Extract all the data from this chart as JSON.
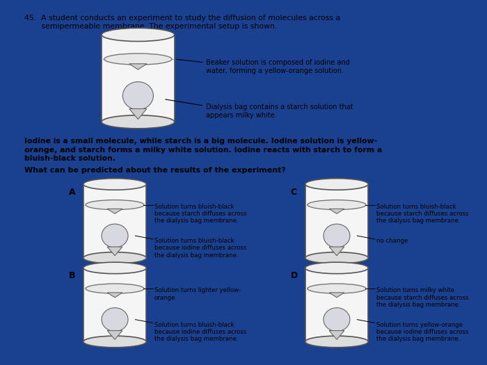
{
  "background_color": "#1a4090",
  "content_bg": "#ffffff",
  "title_line1": "45.  A student conducts an experiment to study the diffusion of molecules across a",
  "title_line2": "       semipermeable membrane. The experimental setup is shown.",
  "description_line1": "Iodine is a small molecule, while starch is a big molecule. Iodine solution is yellow-",
  "description_line2": "orange, and starch forms a milky white solution. Iodine reacts with starch to form a",
  "description_line3": "bluish-black solution.",
  "question": "What can be predicted about the results of the experiment?",
  "beaker_label1": "Beaker solution is composed of iodine and\nwater, forming a yellow-orange solution.",
  "beaker_label2": "Dialysis bag contains a starch solution that\nappears milky white.",
  "option_A_top": "Solution turns bluish-black\nbecause starch diffuses across\nthe dialysis bag membrane.",
  "option_A_bot": "Solution turns bluish-black\nbecause iodine diffuses across\nthe dialysis bag membrane.",
  "option_B_top": "Solution turns lighter yellow-\norange.",
  "option_B_bot": "Solution turns bluish-black\nbecause iodine diffuses across\nthe dialysis bag membrane.",
  "option_C_top": "Solution turns bluish-black\nbecause starch diffuses across\nthe dialysis bag membrane.",
  "option_C_bot": "no change",
  "option_D_top": "Solution turns milky white\nbecause starch diffuses across\nthe dialysis bag membrane.",
  "option_D_bot": "Solution turns yellow-orange\nbecause iodine diffuses across\nthe dialysis bag membrane."
}
